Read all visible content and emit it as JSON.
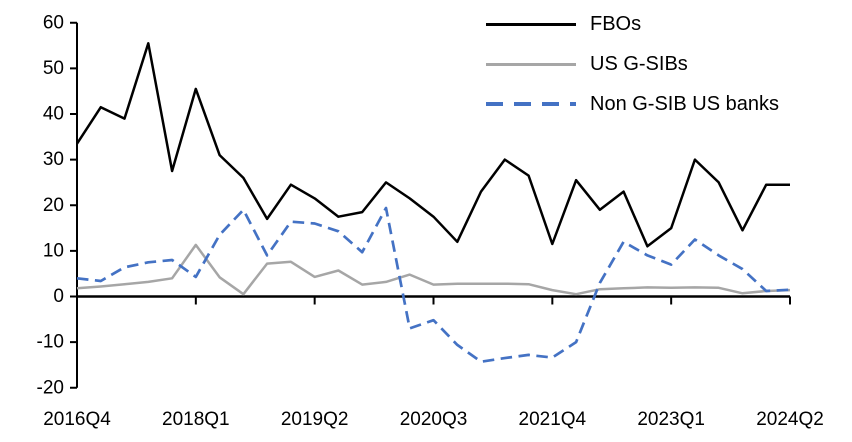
{
  "chart_data": {
    "type": "line",
    "title": "",
    "xlabel": "",
    "ylabel": "",
    "grid": false,
    "legend_position": "top-right",
    "x_count": 31,
    "x_tick_labels": [
      "2016Q4",
      "2018Q1",
      "2019Q2",
      "2020Q3",
      "2021Q4",
      "2023Q1",
      "2024Q2"
    ],
    "x_tick_indices": [
      0,
      5,
      10,
      15,
      20,
      25,
      30
    ],
    "x_frequency": "quarterly",
    "y_tick_labels": [
      "60",
      "50",
      "40",
      "30",
      "20",
      "10",
      "0",
      "-10",
      "-20"
    ],
    "ylim": [
      -20,
      60
    ],
    "series": [
      {
        "name": "FBOs",
        "color": "#000000",
        "style": "solid",
        "values": [
          33.5,
          41.5,
          39,
          55.5,
          27.5,
          45.5,
          31,
          26,
          17,
          24.5,
          21.5,
          17.5,
          18.5,
          25,
          21.5,
          17.5,
          12,
          23,
          30,
          26.5,
          11.5,
          25.5,
          19,
          23,
          11,
          15,
          30,
          25,
          14.5,
          24.5,
          24.5
        ]
      },
      {
        "name": "US G-SIBs",
        "color": "#a6a6a6",
        "style": "solid",
        "values": [
          1.8,
          2.2,
          2.7,
          3.2,
          4,
          11.3,
          4.2,
          0.5,
          7.2,
          7.6,
          4.3,
          5.7,
          2.6,
          3.2,
          4.8,
          2.6,
          2.8,
          2.8,
          2.8,
          2.7,
          1.4,
          0.5,
          1.6,
          1.8,
          2,
          1.9,
          2,
          1.9,
          0.7,
          1.2,
          1.4
        ]
      },
      {
        "name": "Non G-SIB US banks",
        "color": "#4472c4",
        "style": "dashed",
        "values": [
          4,
          3.4,
          6.4,
          7.5,
          8,
          4.3,
          13.5,
          19,
          9,
          16.4,
          16,
          14.3,
          9.7,
          19.4,
          -7,
          -5.2,
          -10.6,
          -14.3,
          -13.5,
          -12.8,
          -13.4,
          -10,
          3,
          12,
          9,
          7,
          12.5,
          9,
          6,
          1.2,
          1.5
        ]
      }
    ]
  }
}
